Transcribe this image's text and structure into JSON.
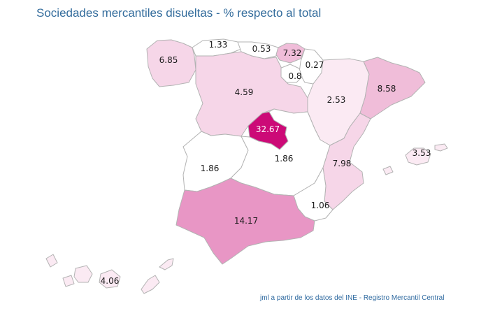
{
  "title": "Sociedades mercantiles disueltas - % respecto al total",
  "credit": "jml a partir de los datos del INE - Registro Mercantil Central",
  "colors": {
    "very_low": "#ffffff",
    "low": "#fbeaf3",
    "mid_low": "#f6d6e8",
    "mid": "#f0bdd9",
    "high": "#e896c5",
    "max": "#cc0a77",
    "border": "#b3b3b3"
  },
  "regions": [
    {
      "name": "Galicia",
      "value": "6.85",
      "fill": "mid_low"
    },
    {
      "name": "Asturias",
      "value": "1.33",
      "fill": "very_low"
    },
    {
      "name": "Cantabria",
      "value": "0.53",
      "fill": "very_low"
    },
    {
      "name": "País Vasco",
      "value": "7.32",
      "fill": "mid"
    },
    {
      "name": "Navarra",
      "value": "0.27",
      "fill": "very_low"
    },
    {
      "name": "La Rioja",
      "value": "0.8",
      "fill": "very_low"
    },
    {
      "name": "Castilla y León",
      "value": "4.59",
      "fill": "mid_low"
    },
    {
      "name": "Aragón",
      "value": "2.53",
      "fill": "low"
    },
    {
      "name": "Cataluña",
      "value": "8.58",
      "fill": "mid"
    },
    {
      "name": "Madrid",
      "value": "32.67",
      "fill": "max"
    },
    {
      "name": "Extremadura",
      "value": "1.86",
      "fill": "very_low"
    },
    {
      "name": "Castilla-La Mancha",
      "value": "1.86",
      "fill": "very_low"
    },
    {
      "name": "Comunidad Valenciana",
      "value": "7.98",
      "fill": "mid_low"
    },
    {
      "name": "Islas Baleares",
      "value": "3.53",
      "fill": "low"
    },
    {
      "name": "Región de Murcia",
      "value": "1.06",
      "fill": "very_low"
    },
    {
      "name": "Andalucía",
      "value": "14.17",
      "fill": "high"
    },
    {
      "name": "Canarias",
      "value": "4.06",
      "fill": "low"
    }
  ]
}
